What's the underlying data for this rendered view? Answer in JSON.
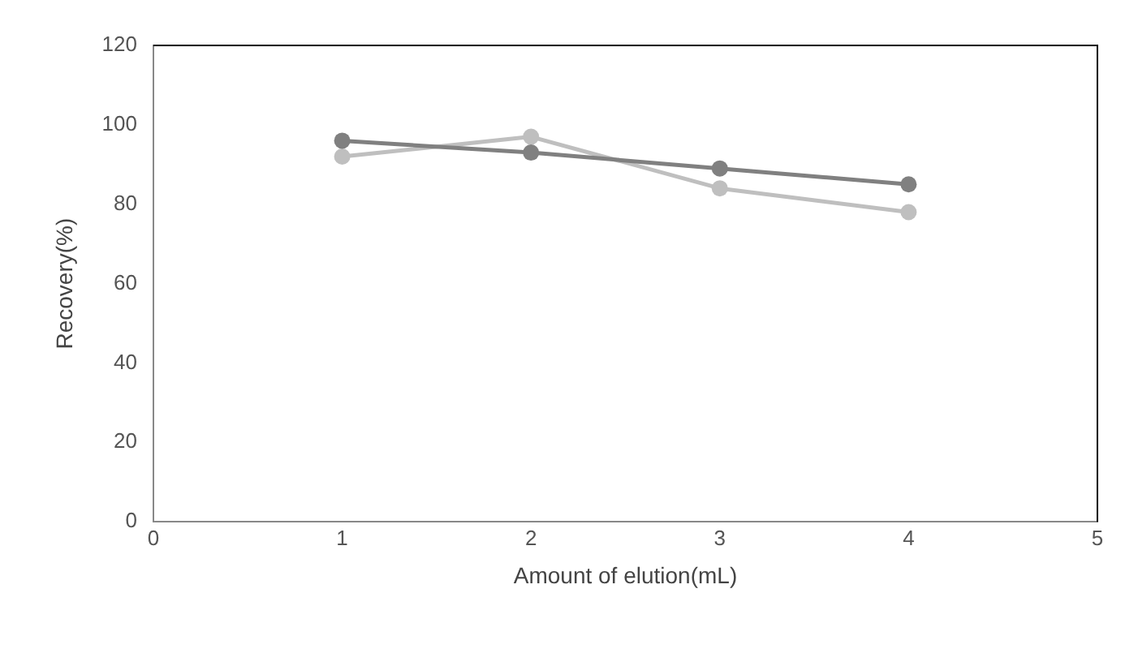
{
  "chart_data": {
    "type": "line",
    "xlabel": "Amount of elution(mL)",
    "ylabel": "Recovery(%)",
    "x": [
      1,
      2,
      3,
      4
    ],
    "series": [
      {
        "color": "#808080",
        "values": [
          96,
          93,
          89,
          85
        ]
      },
      {
        "color": "#bfbfbf",
        "values": [
          92,
          97,
          84,
          78
        ]
      }
    ],
    "xlim": [
      0,
      5
    ],
    "xticks": [
      0,
      1,
      2,
      3,
      4,
      5
    ],
    "ylim": [
      0,
      120
    ],
    "yticks": [
      0,
      20,
      40,
      60,
      80,
      100,
      120
    ],
    "grid": false,
    "legend": false,
    "marker": "circle",
    "line_style": "solid"
  }
}
